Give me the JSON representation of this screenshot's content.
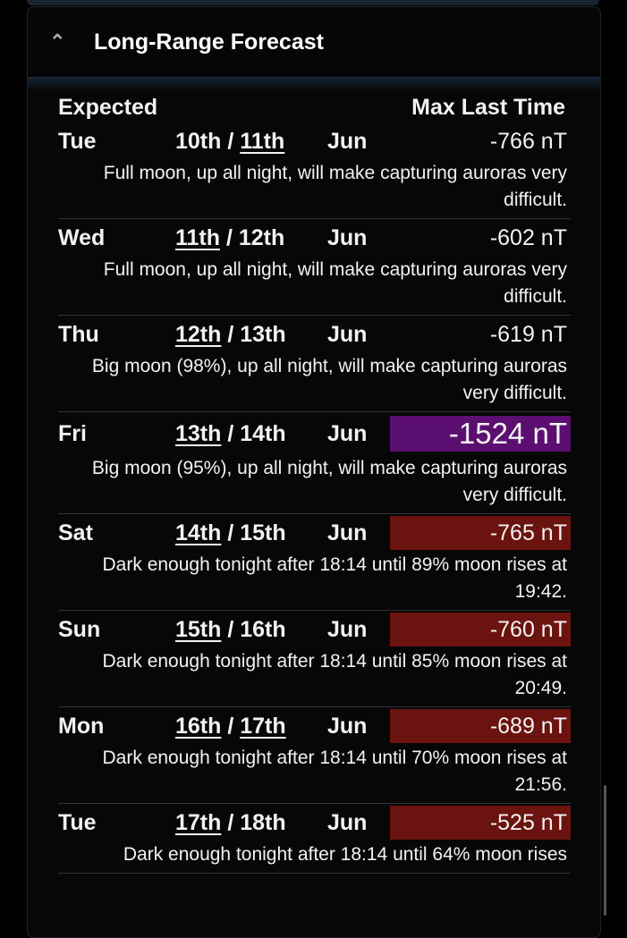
{
  "panel": {
    "title": "Long-Range Forecast",
    "icon": "chevron-up-icon"
  },
  "columns": {
    "expected": "Expected",
    "max": "Max Last Time"
  },
  "colors": {
    "purple": "#5b0f70",
    "red": "#6b130f"
  },
  "rows": [
    {
      "day": "Tue",
      "d1": "10th",
      "sep": " / ",
      "d2": "11th",
      "underline": 2,
      "month": "Jun",
      "value": "-766 nT",
      "level": "none",
      "note": "Full moon, up all night, will make capturing auroras very difficult."
    },
    {
      "day": "Wed",
      "d1": "11th",
      "sep": " / ",
      "d2": "12th",
      "underline": 1,
      "month": "Jun",
      "value": "-602 nT",
      "level": "none",
      "note": "Full moon, up all night, will make capturing auroras very difficult."
    },
    {
      "day": "Thu",
      "d1": "12th",
      "sep": " / ",
      "d2": "13th",
      "underline": 1,
      "month": "Jun",
      "value": "-619 nT",
      "level": "none",
      "note": "Big moon (98%), up all night, will make capturing auroras very difficult."
    },
    {
      "day": "Fri",
      "d1": "13th",
      "sep": " / ",
      "d2": "14th",
      "underline": 1,
      "month": "Jun",
      "value": "-1524 nT",
      "level": "purple",
      "note": "Big moon (95%), up all night, will make capturing auroras very difficult."
    },
    {
      "day": "Sat",
      "d1": "14th",
      "sep": " / ",
      "d2": "15th",
      "underline": 1,
      "month": "Jun",
      "value": "-765 nT",
      "level": "red",
      "note": "Dark enough tonight after 18:14 until 89% moon rises at 19:42."
    },
    {
      "day": "Sun",
      "d1": "15th",
      "sep": " / ",
      "d2": "16th",
      "underline": 1,
      "month": "Jun",
      "value": "-760 nT",
      "level": "red",
      "note": "Dark enough tonight after 18:14 until 85% moon rises at 20:49."
    },
    {
      "day": "Mon",
      "d1": "16th",
      "sep": " / ",
      "d2": "17th",
      "underline": 3,
      "month": "Jun",
      "value": "-689 nT",
      "level": "red",
      "note": "Dark enough tonight after 18:14 until 70% moon rises at 21:56."
    },
    {
      "day": "Tue",
      "d1": "17th",
      "sep": " / ",
      "d2": "18th",
      "underline": 1,
      "month": "Jun",
      "value": "-525 nT",
      "level": "red",
      "note": "Dark enough tonight after 18:14 until 64% moon rises"
    }
  ]
}
